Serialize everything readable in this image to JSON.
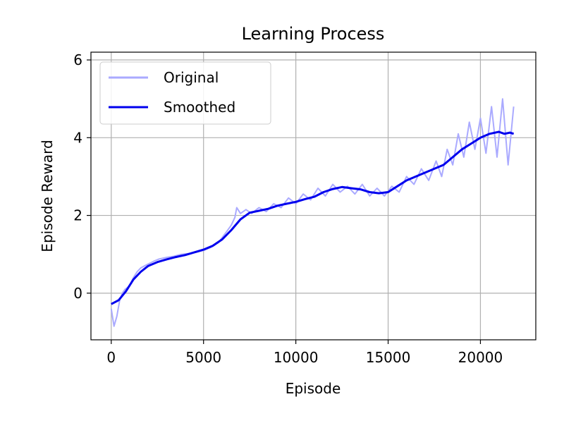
{
  "chart_data": {
    "type": "line",
    "title": "Learning Process",
    "xlabel": "Episode",
    "ylabel": "Episode Reward",
    "xlim": [
      -1100,
      23000
    ],
    "ylim": [
      -1.2,
      6.2
    ],
    "xticks": [
      0,
      5000,
      10000,
      15000,
      20000
    ],
    "xtick_labels": [
      "0",
      "5000",
      "10000",
      "15000",
      "20000"
    ],
    "yticks": [
      0,
      2,
      4,
      6
    ],
    "ytick_labels": [
      "0",
      "2",
      "4",
      "6"
    ],
    "grid": true,
    "legend_position": "top-left",
    "series": [
      {
        "name": "Original",
        "color": "#aaaaff",
        "x": [
          0,
          150,
          300,
          450,
          600,
          750,
          900,
          1050,
          1200,
          1400,
          1600,
          1800,
          2000,
          2300,
          2600,
          3000,
          3400,
          3800,
          4200,
          4600,
          5000,
          5400,
          5800,
          6200,
          6500,
          6700,
          6800,
          7000,
          7300,
          7600,
          8000,
          8400,
          8800,
          9200,
          9600,
          10000,
          10400,
          10800,
          11200,
          11600,
          12000,
          12400,
          12800,
          13200,
          13600,
          14000,
          14400,
          14800,
          15200,
          15600,
          16000,
          16400,
          16800,
          17200,
          17600,
          17900,
          18200,
          18500,
          18800,
          19100,
          19400,
          19700,
          20000,
          20300,
          20600,
          20900,
          21200,
          21500,
          21800
        ],
        "values": [
          -0.4,
          -0.85,
          -0.6,
          -0.2,
          0.0,
          0.1,
          0.15,
          0.25,
          0.4,
          0.55,
          0.65,
          0.7,
          0.75,
          0.82,
          0.88,
          0.92,
          0.95,
          1.0,
          1.02,
          1.05,
          1.1,
          1.18,
          1.3,
          1.55,
          1.75,
          1.95,
          2.2,
          2.05,
          2.15,
          2.05,
          2.2,
          2.1,
          2.3,
          2.2,
          2.45,
          2.3,
          2.55,
          2.4,
          2.7,
          2.5,
          2.8,
          2.6,
          2.75,
          2.55,
          2.8,
          2.5,
          2.7,
          2.5,
          2.75,
          2.6,
          3.0,
          2.8,
          3.2,
          2.9,
          3.4,
          3.0,
          3.7,
          3.3,
          4.1,
          3.5,
          4.4,
          3.7,
          4.5,
          3.6,
          4.8,
          3.5,
          5.0,
          3.3,
          4.8
        ]
      },
      {
        "name": "Smoothed",
        "color": "#0000ee",
        "x": [
          0,
          400,
          800,
          1200,
          1600,
          2000,
          2500,
          3000,
          3500,
          4000,
          4500,
          5000,
          5500,
          6000,
          6500,
          7000,
          7500,
          8000,
          8500,
          9000,
          9500,
          10000,
          10500,
          11000,
          11500,
          12000,
          12500,
          13000,
          13500,
          14000,
          14500,
          15000,
          15500,
          16000,
          16500,
          17000,
          17500,
          18000,
          18500,
          19000,
          19500,
          20000,
          20500,
          21000,
          21300,
          21600,
          21800
        ],
        "values": [
          -0.28,
          -0.18,
          0.05,
          0.35,
          0.55,
          0.7,
          0.8,
          0.87,
          0.93,
          0.98,
          1.05,
          1.12,
          1.22,
          1.38,
          1.62,
          1.9,
          2.07,
          2.12,
          2.17,
          2.25,
          2.3,
          2.35,
          2.42,
          2.48,
          2.6,
          2.68,
          2.73,
          2.7,
          2.67,
          2.6,
          2.57,
          2.6,
          2.75,
          2.9,
          3.0,
          3.1,
          3.2,
          3.3,
          3.5,
          3.7,
          3.85,
          4.0,
          4.1,
          4.15,
          4.1,
          4.13,
          4.1
        ]
      }
    ]
  }
}
